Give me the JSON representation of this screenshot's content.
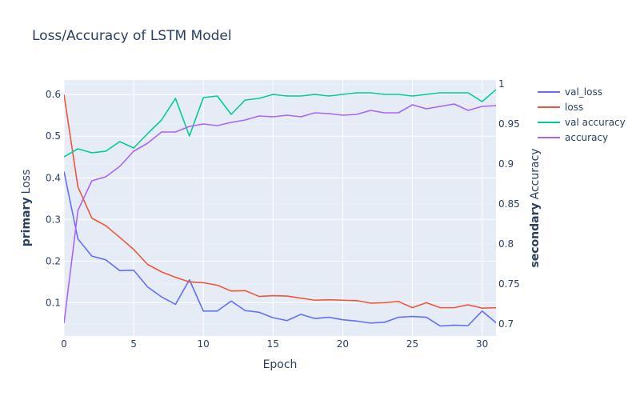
{
  "chart_data": {
    "type": "line",
    "title": "Loss/Accuracy of LSTM Model",
    "xlabel": "Epoch",
    "ylabel_primary": {
      "bold": "primary",
      "rest": "Loss"
    },
    "ylabel_secondary": {
      "bold": "secondary",
      "rest": "Accuracy"
    },
    "xlim": [
      0,
      31
    ],
    "ylim_primary": [
      0.02,
      0.635
    ],
    "ylim_secondary": [
      0.685,
      1.005
    ],
    "x_ticks": [
      "0",
      "5",
      "10",
      "15",
      "20",
      "25",
      "30"
    ],
    "y_ticks_primary": [
      "0.1",
      "0.2",
      "0.3",
      "0.4",
      "0.5",
      "0.6"
    ],
    "y_ticks_secondary": [
      "0.7",
      "0.75",
      "0.8",
      "0.85",
      "0.9",
      "0.95",
      "1"
    ],
    "grid": true,
    "legend_placement": "top-right",
    "x": [
      0,
      1,
      2,
      3,
      4,
      5,
      6,
      7,
      8,
      9,
      10,
      11,
      12,
      13,
      14,
      15,
      16,
      17,
      18,
      19,
      20,
      21,
      22,
      23,
      24,
      25,
      26,
      27,
      28,
      29,
      30,
      31
    ],
    "series": [
      {
        "name": "val_loss",
        "axis": "primary",
        "color": "#636efa",
        "values": [
          0.415,
          0.253,
          0.212,
          0.203,
          0.177,
          0.178,
          0.138,
          0.114,
          0.096,
          0.155,
          0.08,
          0.08,
          0.104,
          0.081,
          0.077,
          0.064,
          0.057,
          0.072,
          0.062,
          0.065,
          0.059,
          0.056,
          0.051,
          0.053,
          0.065,
          0.067,
          0.065,
          0.044,
          0.046,
          0.045,
          0.08,
          0.052
        ]
      },
      {
        "name": "loss",
        "axis": "primary",
        "color": "#ef553b",
        "values": [
          0.6,
          0.378,
          0.303,
          0.285,
          0.257,
          0.228,
          0.192,
          0.174,
          0.161,
          0.15,
          0.148,
          0.142,
          0.128,
          0.129,
          0.115,
          0.117,
          0.116,
          0.111,
          0.106,
          0.107,
          0.106,
          0.105,
          0.099,
          0.1,
          0.103,
          0.088,
          0.1,
          0.088,
          0.088,
          0.095,
          0.087,
          0.088
        ]
      },
      {
        "name": "val accuracy",
        "axis": "secondary",
        "color": "#00cc96",
        "values": [
          0.909,
          0.919,
          0.914,
          0.916,
          0.928,
          0.92,
          0.938,
          0.955,
          0.982,
          0.935,
          0.983,
          0.985,
          0.962,
          0.98,
          0.982,
          0.987,
          0.985,
          0.985,
          0.987,
          0.985,
          0.987,
          0.989,
          0.989,
          0.987,
          0.987,
          0.985,
          0.987,
          0.989,
          0.989,
          0.989,
          0.978,
          0.993
        ]
      },
      {
        "name": "accuracy",
        "axis": "secondary",
        "color": "#ab63fa",
        "values": [
          0.701,
          0.842,
          0.879,
          0.884,
          0.897,
          0.916,
          0.926,
          0.94,
          0.94,
          0.947,
          0.95,
          0.948,
          0.952,
          0.955,
          0.96,
          0.959,
          0.961,
          0.959,
          0.964,
          0.963,
          0.961,
          0.962,
          0.967,
          0.964,
          0.964,
          0.974,
          0.969,
          0.972,
          0.975,
          0.967,
          0.972,
          0.973
        ]
      }
    ]
  }
}
